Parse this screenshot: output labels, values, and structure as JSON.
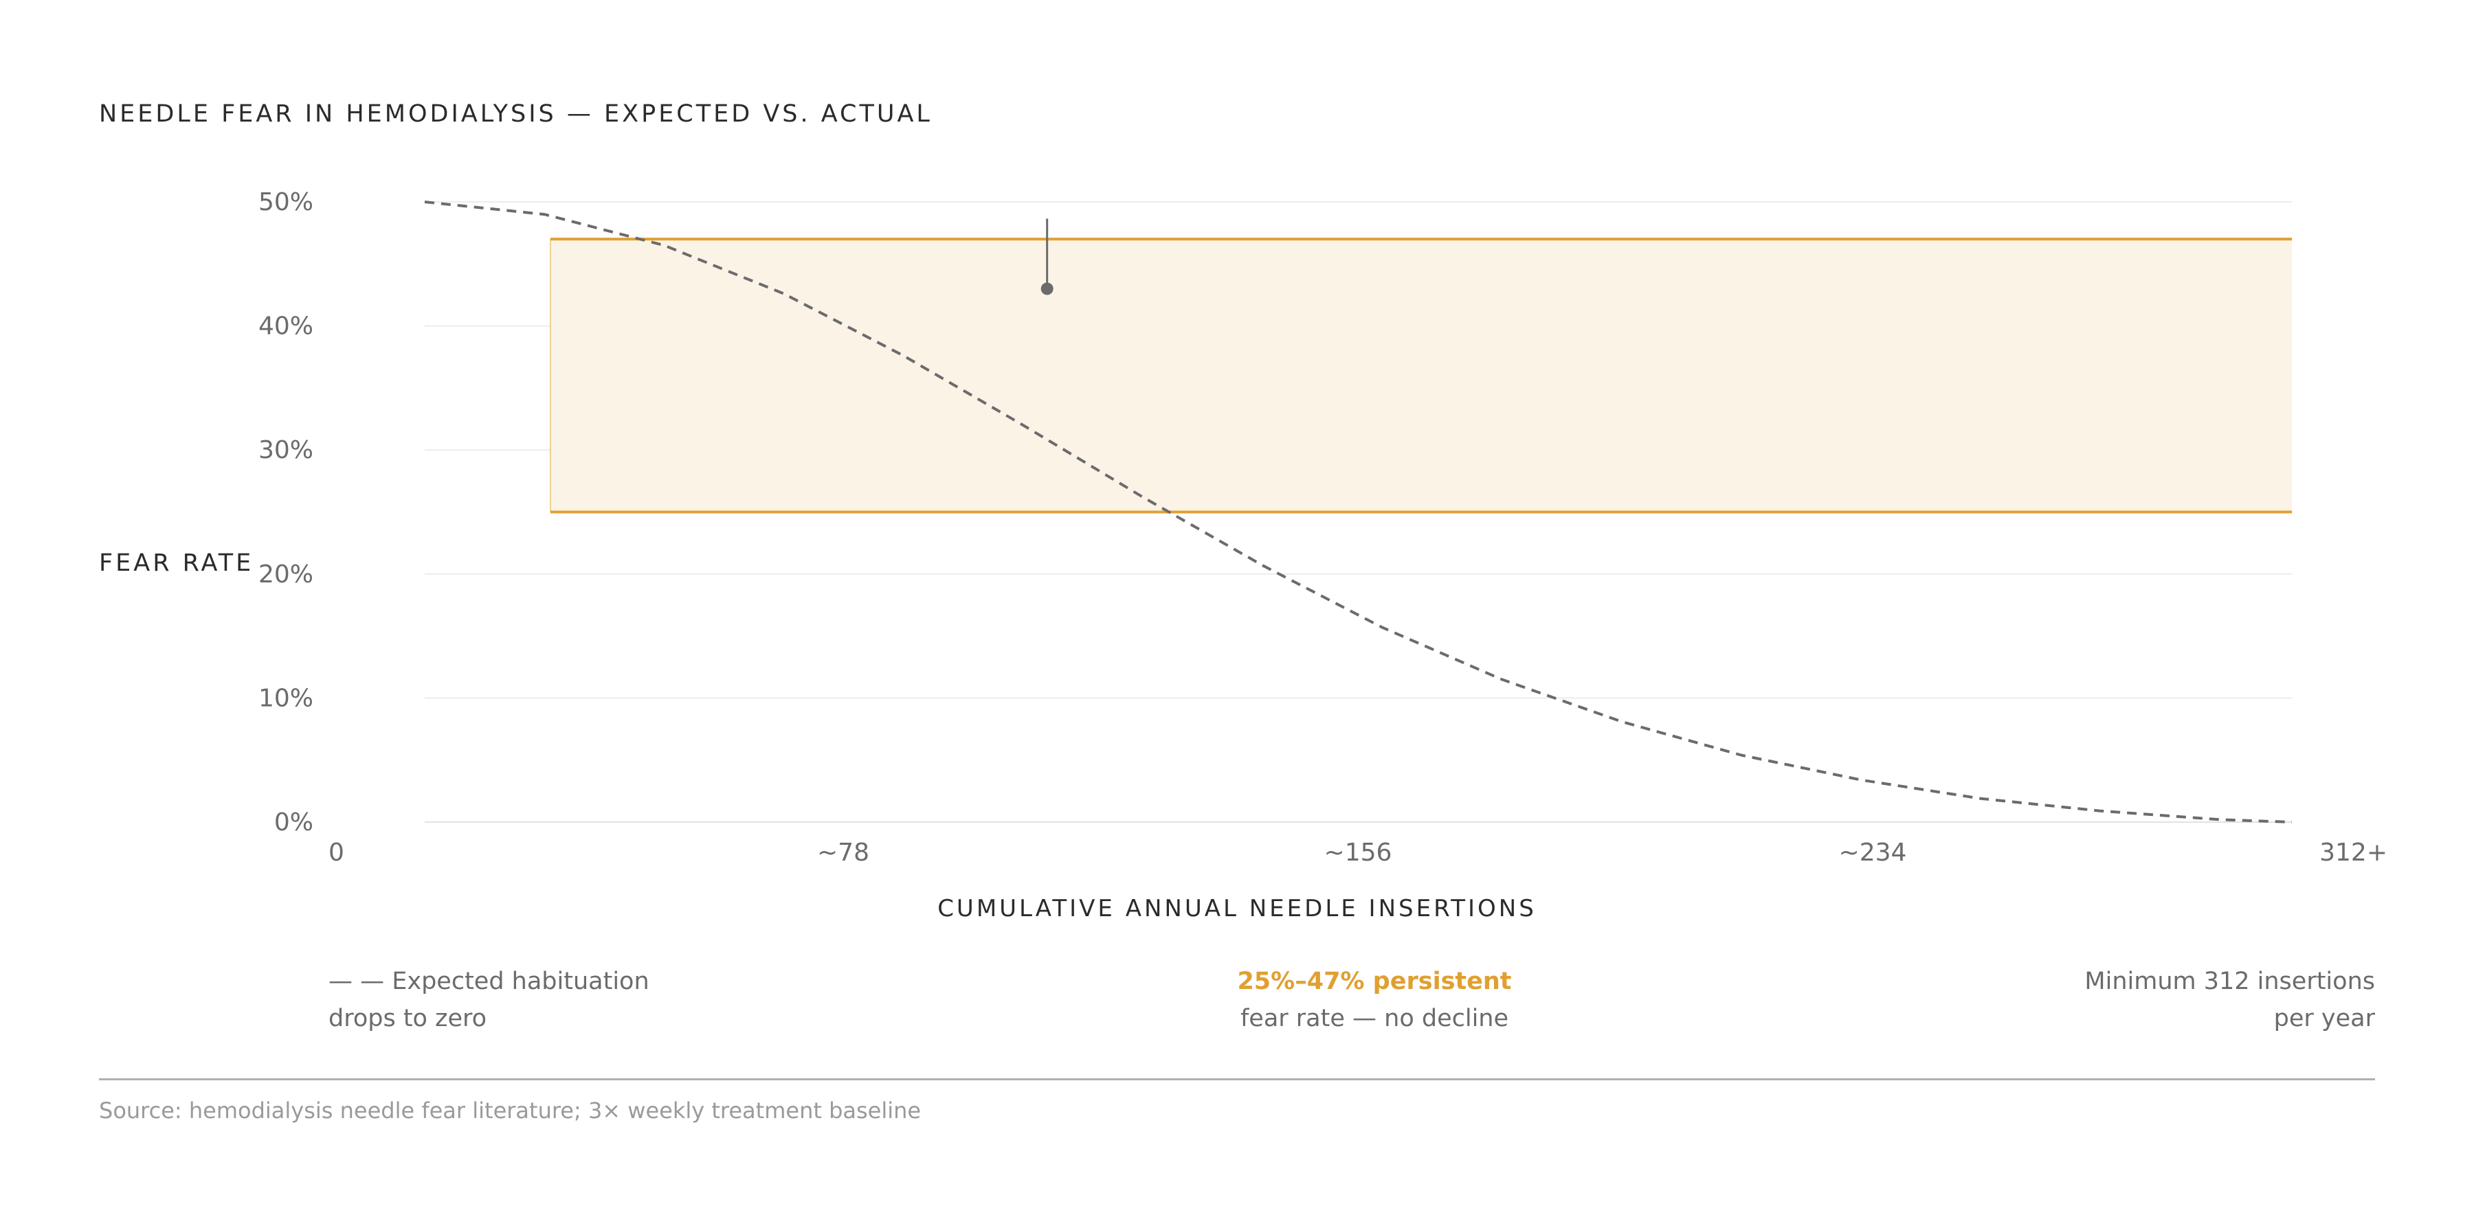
{
  "chart_data": {
    "type": "line",
    "title": "NEEDLE FEAR IN HEMODIALYSIS — EXPECTED VS. ACTUAL",
    "ylabel": "FEAR RATE",
    "xlabel": "CUMULATIVE ANNUAL NEEDLE INSERTIONS",
    "ylim": [
      0,
      50
    ],
    "xlim": [
      0,
      312
    ],
    "y_ticks": [
      "0%",
      "10%",
      "20%",
      "30%",
      "40%",
      "50%"
    ],
    "x_ticks": [
      "0",
      "~78",
      "~156",
      "~234",
      "312+"
    ],
    "grid": true,
    "series": [
      {
        "name": "Expected habituation",
        "style": "dashed",
        "color": "#6b6b6b",
        "x": [
          0,
          20,
          40,
          60,
          80,
          100,
          120,
          140,
          160,
          180,
          200,
          220,
          240,
          260,
          280,
          300,
          312
        ],
        "y": [
          50.0,
          49.0,
          46.5,
          42.6,
          37.6,
          32.0,
          26.2,
          20.7,
          15.7,
          11.5,
          8.1,
          5.4,
          3.4,
          1.9,
          0.9,
          0.2,
          0.0
        ]
      }
    ],
    "band": {
      "label": "25%–47% persistent",
      "x_start": 21,
      "x_end": 312,
      "y_low": 25,
      "y_high": 47,
      "color": "#e0a030",
      "fill": "#fbf3e6"
    },
    "marker": {
      "x": 104,
      "y": 43
    }
  },
  "footer": {
    "left_line1": "— — Expected habituation",
    "left_line2": "drops to zero",
    "mid_highlight": "25%–47% persistent",
    "mid_line2": "fear rate — no decline",
    "right_line1": "Minimum 312 insertions",
    "right_line2": "per year"
  },
  "source": "Source: hemodialysis needle fear literature; 3× weekly treatment baseline",
  "colors": {
    "accent": "#e0a030",
    "grid": "#ececec",
    "text": "#2b2b2b",
    "muted": "#6b6b6b"
  }
}
